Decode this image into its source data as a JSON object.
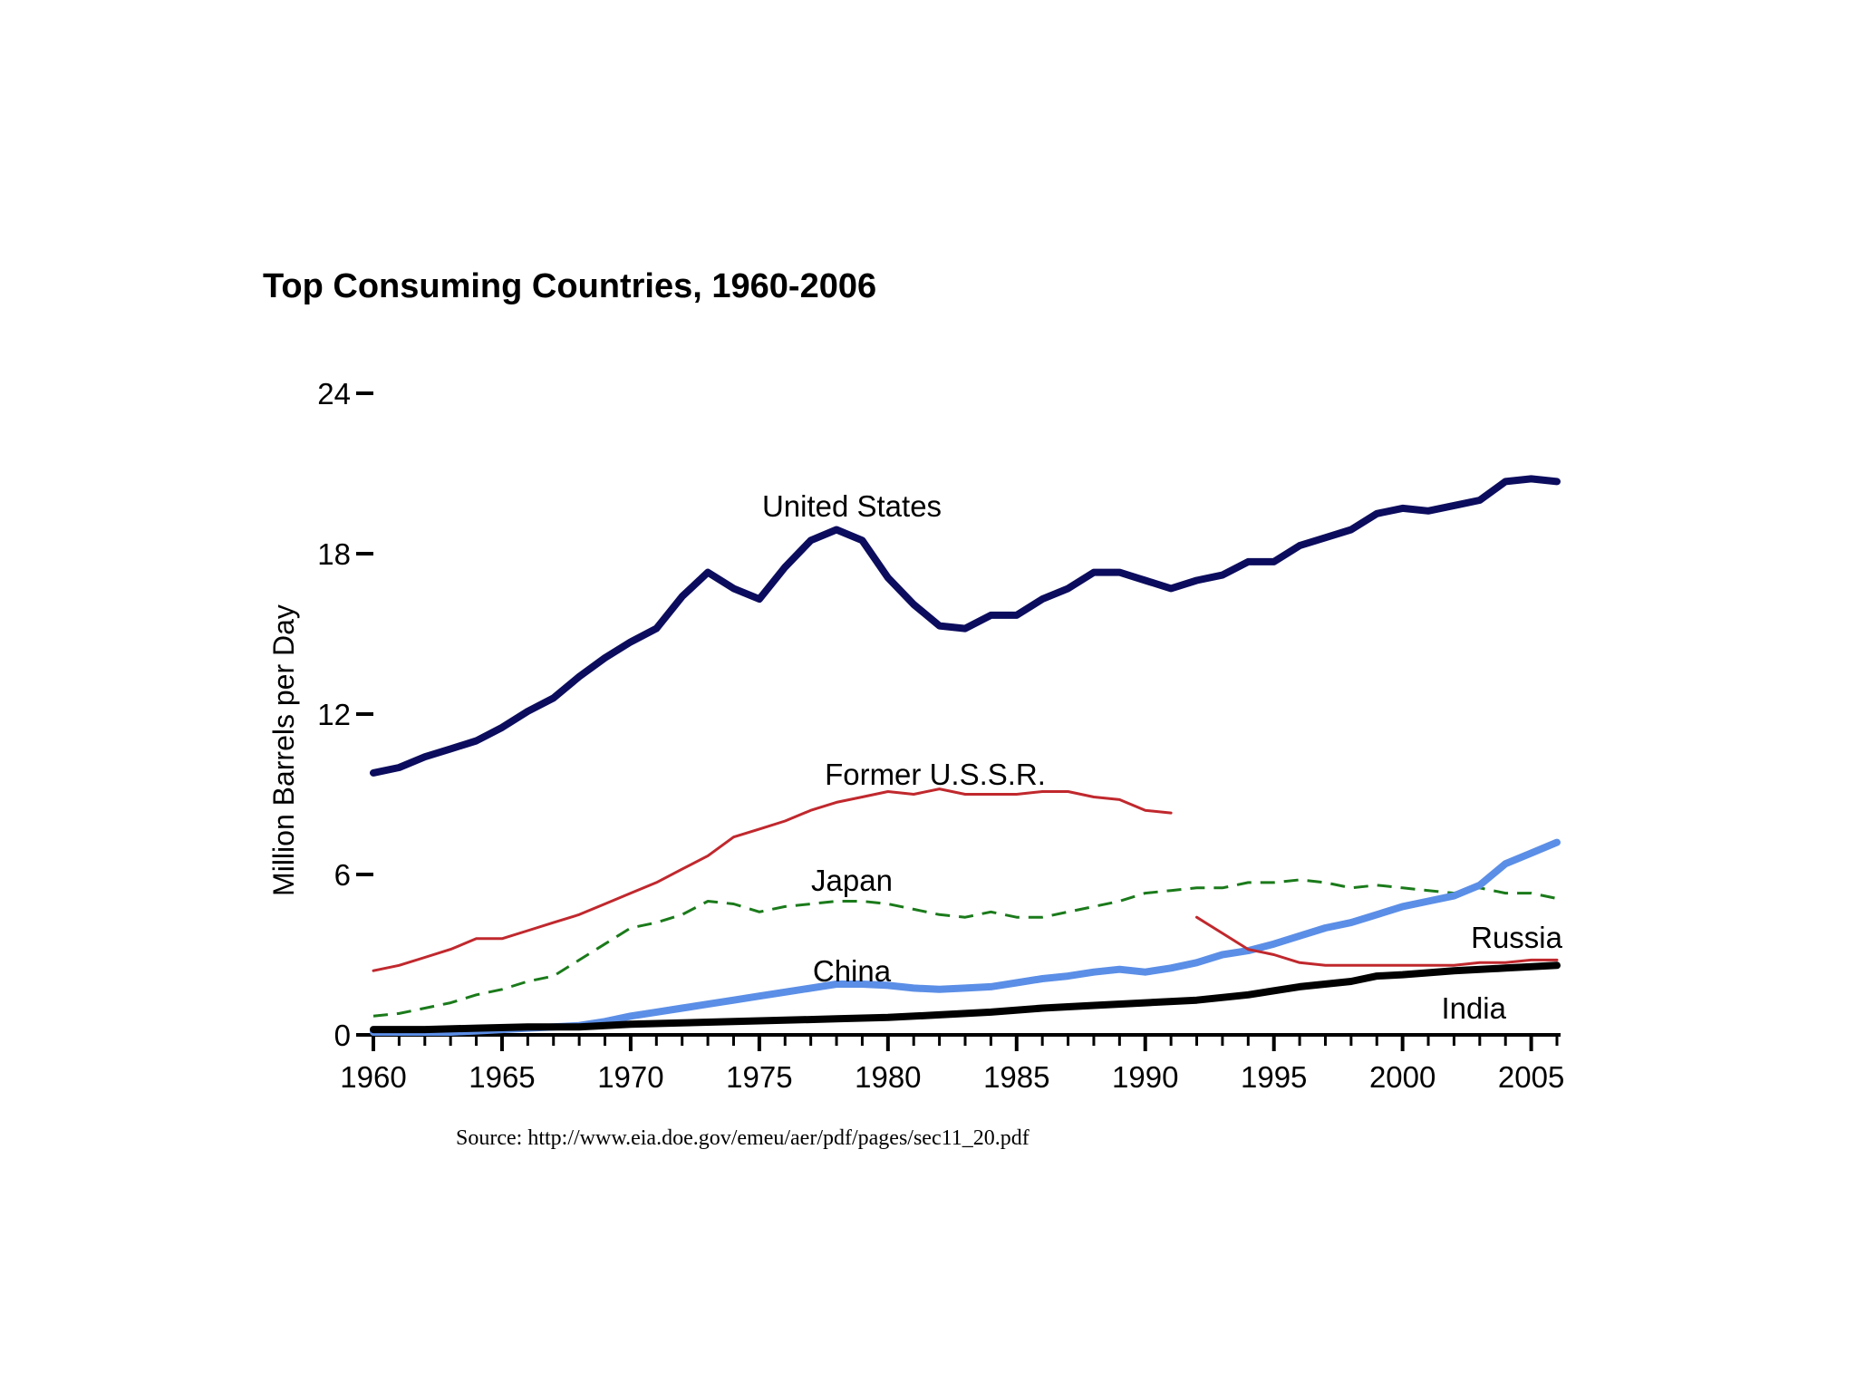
{
  "chart_data": {
    "type": "line",
    "title": "Top Consuming Countries, 1960-2006",
    "xlabel": "",
    "ylabel": "Million Barrels per Day",
    "xlim": [
      1960,
      2006
    ],
    "ylim": [
      0,
      24
    ],
    "x_ticks": [
      "1960",
      "1965",
      "1970",
      "1975",
      "1980",
      "1985",
      "1990",
      "1995",
      "2000",
      "2005"
    ],
    "y_ticks": [
      "0",
      "6",
      "12",
      "18",
      "24"
    ],
    "grid": false,
    "legend": "direct labels on lines",
    "source": "Source: http://www.eia.doe.gov/emeu/aer/pdf/pages/sec11_20.pdf",
    "series": [
      {
        "name": "United States",
        "label": "United States",
        "color": "#0c0c5e",
        "style": "solid-thick",
        "x": [
          1960,
          1961,
          1962,
          1963,
          1964,
          1965,
          1966,
          1967,
          1968,
          1969,
          1970,
          1971,
          1972,
          1973,
          1974,
          1975,
          1976,
          1977,
          1978,
          1979,
          1980,
          1981,
          1982,
          1983,
          1984,
          1985,
          1986,
          1987,
          1988,
          1989,
          1990,
          1991,
          1992,
          1993,
          1994,
          1995,
          1996,
          1997,
          1998,
          1999,
          2000,
          2001,
          2002,
          2003,
          2004,
          2005,
          2006
        ],
        "values": [
          9.8,
          10.0,
          10.4,
          10.7,
          11.0,
          11.5,
          12.1,
          12.6,
          13.4,
          14.1,
          14.7,
          15.2,
          16.4,
          17.3,
          16.7,
          16.3,
          17.5,
          18.5,
          18.9,
          18.5,
          17.1,
          16.1,
          15.3,
          15.2,
          15.7,
          15.7,
          16.3,
          16.7,
          17.3,
          17.3,
          17.0,
          16.7,
          17.0,
          17.2,
          17.7,
          17.7,
          18.3,
          18.6,
          18.9,
          19.5,
          19.7,
          19.6,
          19.8,
          20.0,
          20.7,
          20.8,
          20.7
        ]
      },
      {
        "name": "Former U.S.S.R.",
        "label": "Former U.S.S.R.",
        "color": "#c0282d",
        "style": "solid",
        "x": [
          1960,
          1961,
          1962,
          1963,
          1964,
          1965,
          1966,
          1967,
          1968,
          1969,
          1970,
          1971,
          1972,
          1973,
          1974,
          1975,
          1976,
          1977,
          1978,
          1979,
          1980,
          1981,
          1982,
          1983,
          1984,
          1985,
          1986,
          1987,
          1988,
          1989,
          1990,
          1991
        ],
        "values": [
          2.4,
          2.6,
          2.9,
          3.2,
          3.6,
          3.6,
          3.9,
          4.2,
          4.5,
          4.9,
          5.3,
          5.7,
          6.2,
          6.7,
          7.4,
          7.7,
          8.0,
          8.4,
          8.7,
          8.9,
          9.1,
          9.0,
          9.2,
          9.0,
          9.0,
          9.0,
          9.1,
          9.1,
          8.9,
          8.8,
          8.4,
          8.3
        ]
      },
      {
        "name": "Japan",
        "label": "Japan",
        "color": "#1a7a1a",
        "style": "dashed",
        "x": [
          1960,
          1961,
          1962,
          1963,
          1964,
          1965,
          1966,
          1967,
          1968,
          1969,
          1970,
          1971,
          1972,
          1973,
          1974,
          1975,
          1976,
          1977,
          1978,
          1979,
          1980,
          1981,
          1982,
          1983,
          1984,
          1985,
          1986,
          1987,
          1988,
          1989,
          1990,
          1991,
          1992,
          1993,
          1994,
          1995,
          1996,
          1997,
          1998,
          1999,
          2000,
          2001,
          2002,
          2003,
          2004,
          2005,
          2006
        ],
        "values": [
          0.7,
          0.8,
          1.0,
          1.2,
          1.5,
          1.7,
          2.0,
          2.2,
          2.8,
          3.4,
          4.0,
          4.2,
          4.5,
          5.0,
          4.9,
          4.6,
          4.8,
          4.9,
          5.0,
          5.0,
          4.9,
          4.7,
          4.5,
          4.4,
          4.6,
          4.4,
          4.4,
          4.6,
          4.8,
          5.0,
          5.3,
          5.4,
          5.5,
          5.5,
          5.7,
          5.7,
          5.8,
          5.7,
          5.5,
          5.6,
          5.5,
          5.4,
          5.3,
          5.5,
          5.3,
          5.3,
          5.1
        ]
      },
      {
        "name": "China",
        "label": "China",
        "color": "#5b8ee6",
        "style": "solid-thick",
        "x": [
          1960,
          1961,
          1962,
          1963,
          1964,
          1965,
          1966,
          1967,
          1968,
          1969,
          1970,
          1971,
          1972,
          1973,
          1974,
          1975,
          1976,
          1977,
          1978,
          1979,
          1980,
          1981,
          1982,
          1983,
          1984,
          1985,
          1986,
          1987,
          1988,
          1989,
          1990,
          1991,
          1992,
          1993,
          1994,
          1995,
          1996,
          1997,
          1998,
          1999,
          2000,
          2001,
          2002,
          2003,
          2004,
          2005,
          2006
        ],
        "values": [
          0.1,
          0.1,
          0.1,
          0.1,
          0.15,
          0.2,
          0.25,
          0.3,
          0.35,
          0.5,
          0.7,
          0.85,
          1.0,
          1.15,
          1.3,
          1.45,
          1.6,
          1.75,
          1.9,
          1.9,
          1.85,
          1.75,
          1.7,
          1.75,
          1.8,
          1.95,
          2.1,
          2.2,
          2.35,
          2.45,
          2.35,
          2.5,
          2.7,
          3.0,
          3.15,
          3.4,
          3.7,
          4.0,
          4.2,
          4.5,
          4.8,
          5.0,
          5.2,
          5.6,
          6.4,
          6.8,
          7.2
        ]
      },
      {
        "name": "Russia",
        "label": "Russia",
        "color": "#c0282d",
        "style": "solid",
        "x": [
          1992,
          1993,
          1994,
          1995,
          1996,
          1997,
          1998,
          1999,
          2000,
          2001,
          2002,
          2003,
          2004,
          2005,
          2006
        ],
        "values": [
          4.4,
          3.8,
          3.2,
          3.0,
          2.7,
          2.6,
          2.6,
          2.6,
          2.6,
          2.6,
          2.6,
          2.7,
          2.7,
          2.8,
          2.8
        ]
      },
      {
        "name": "India",
        "label": "India",
        "color": "#000000",
        "style": "solid-thick",
        "x": [
          1960,
          1962,
          1964,
          1966,
          1968,
          1970,
          1972,
          1974,
          1976,
          1978,
          1980,
          1982,
          1984,
          1986,
          1988,
          1990,
          1992,
          1994,
          1996,
          1998,
          1999,
          2000,
          2002,
          2004,
          2006
        ],
        "values": [
          0.2,
          0.2,
          0.25,
          0.3,
          0.3,
          0.4,
          0.45,
          0.5,
          0.55,
          0.6,
          0.65,
          0.75,
          0.85,
          1.0,
          1.1,
          1.2,
          1.3,
          1.5,
          1.8,
          2.0,
          2.2,
          2.25,
          2.4,
          2.5,
          2.6
        ]
      }
    ]
  }
}
